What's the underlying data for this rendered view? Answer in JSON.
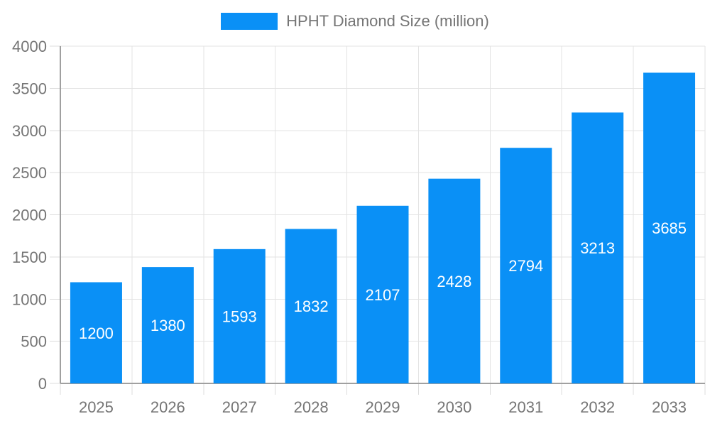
{
  "legend": {
    "label": "HPHT Diamond Size (million)"
  },
  "chart_data": {
    "type": "bar",
    "title": "",
    "xlabel": "",
    "ylabel": "",
    "categories": [
      "2025",
      "2026",
      "2027",
      "2028",
      "2029",
      "2030",
      "2031",
      "2032",
      "2033"
    ],
    "series": [
      {
        "name": "HPHT Diamond Size (million)",
        "values": [
          1200,
          1380,
          1593,
          1832,
          2107,
          2428,
          2794,
          3213,
          3685
        ]
      }
    ],
    "bar_labels": [
      1200,
      1380,
      1593,
      1832,
      2107,
      2428,
      2794,
      3213,
      3685
    ],
    "ylim": [
      0,
      4000
    ],
    "ytick_step": 500,
    "yticks": [
      0,
      500,
      1000,
      1500,
      2000,
      2500,
      3000,
      3500,
      4000
    ],
    "grid": "on",
    "legend_position": "top-center",
    "bar_label_position": "inside-center",
    "colors": {
      "bar": "#0a90f6",
      "bar_label": "#ffffff",
      "axis_text": "#757575",
      "grid_line": "#e3e3e3",
      "tick_line": "#dcdcdc",
      "axis_line": "#a0a0a0",
      "background": "#ffffff"
    }
  }
}
